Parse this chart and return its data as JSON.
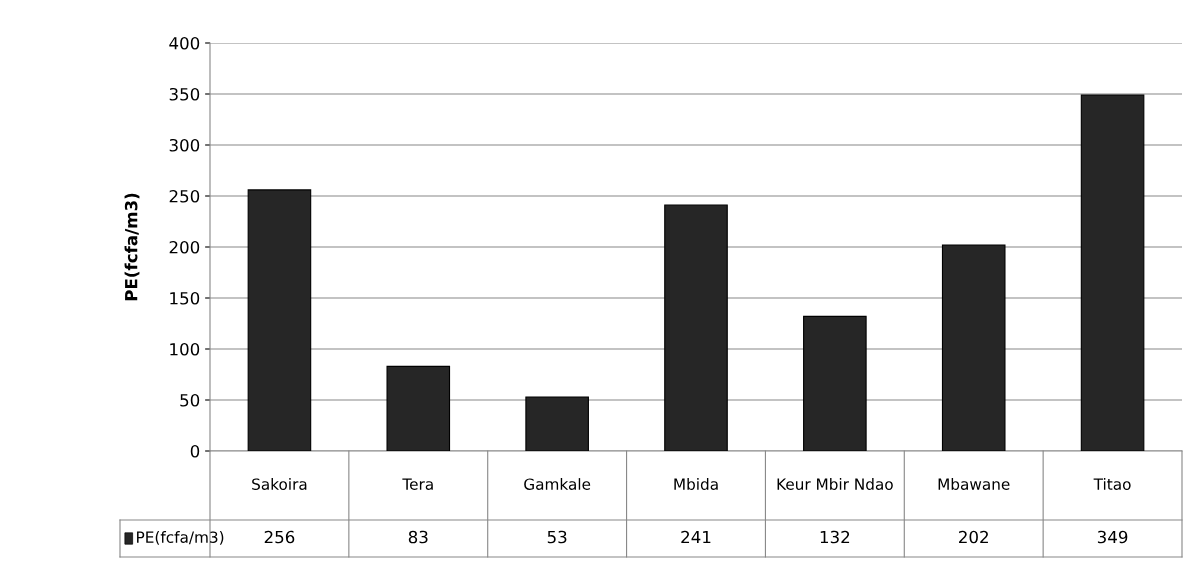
{
  "chart_data": {
    "type": "bar",
    "ylabel": "PE(fcfa/m3)",
    "categories": [
      "Sakoira",
      "Tera",
      "Gamkale",
      "Mbida",
      "Keur Mbir Ndao",
      "Mbawane",
      "Titao"
    ],
    "series": [
      {
        "name": "PE(fcfa/m3)",
        "color": "#262626",
        "values": [
          256,
          83,
          53,
          241,
          132,
          202,
          349
        ]
      }
    ],
    "ylim": [
      0,
      400
    ],
    "yticks": [
      0,
      50,
      100,
      150,
      200,
      250,
      300,
      350,
      400
    ],
    "grid": "y",
    "legend": "bottom",
    "data_labels": true
  }
}
